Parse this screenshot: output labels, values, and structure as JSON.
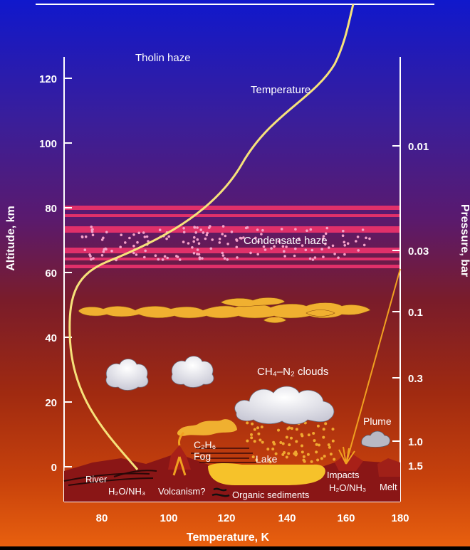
{
  "labels": {
    "tholin_haze": "Tholin haze",
    "temperature": "Temperature",
    "condensate_haze": "Condensate haze",
    "ch4_n2_clouds": "CH₄–N₂ clouds",
    "plume": "Plume",
    "c2h6": "C₂H₆",
    "fog": "Fog",
    "lake": "Lake",
    "river": "River",
    "h2o_nh3_left": "H₂O/NH₃",
    "volcanism": "Volcanism?",
    "organic_sediments": "Organic sediments",
    "impacts": "Impacts",
    "h2o_nh3_right": "H₂O/NH₃",
    "melt": "Melt"
  },
  "axes": {
    "y_left": {
      "label": "Altitude, km",
      "ticks": [
        "120",
        "100",
        "80",
        "60",
        "40",
        "20",
        "0"
      ]
    },
    "y_right": {
      "label": "Pressure, bar",
      "ticks": [
        "0.01",
        "0.03",
        "0.1",
        "0.3",
        "1.0",
        "1.5"
      ]
    },
    "x": {
      "label": "Temperature, K",
      "ticks": [
        "80",
        "100",
        "120",
        "140",
        "160",
        "180"
      ]
    }
  },
  "colors": {
    "sky_top": "#1218c8",
    "sky_mid": "#5a1a78",
    "sky_low": "#a0280c",
    "ground_glow": "#e85a10",
    "temperature_line": "#f6e27a",
    "haze_band": "#e03a78",
    "cloud_yellow": "#f0b030",
    "lake": "#f6c62a",
    "terrain": "#8a1a1a"
  }
}
